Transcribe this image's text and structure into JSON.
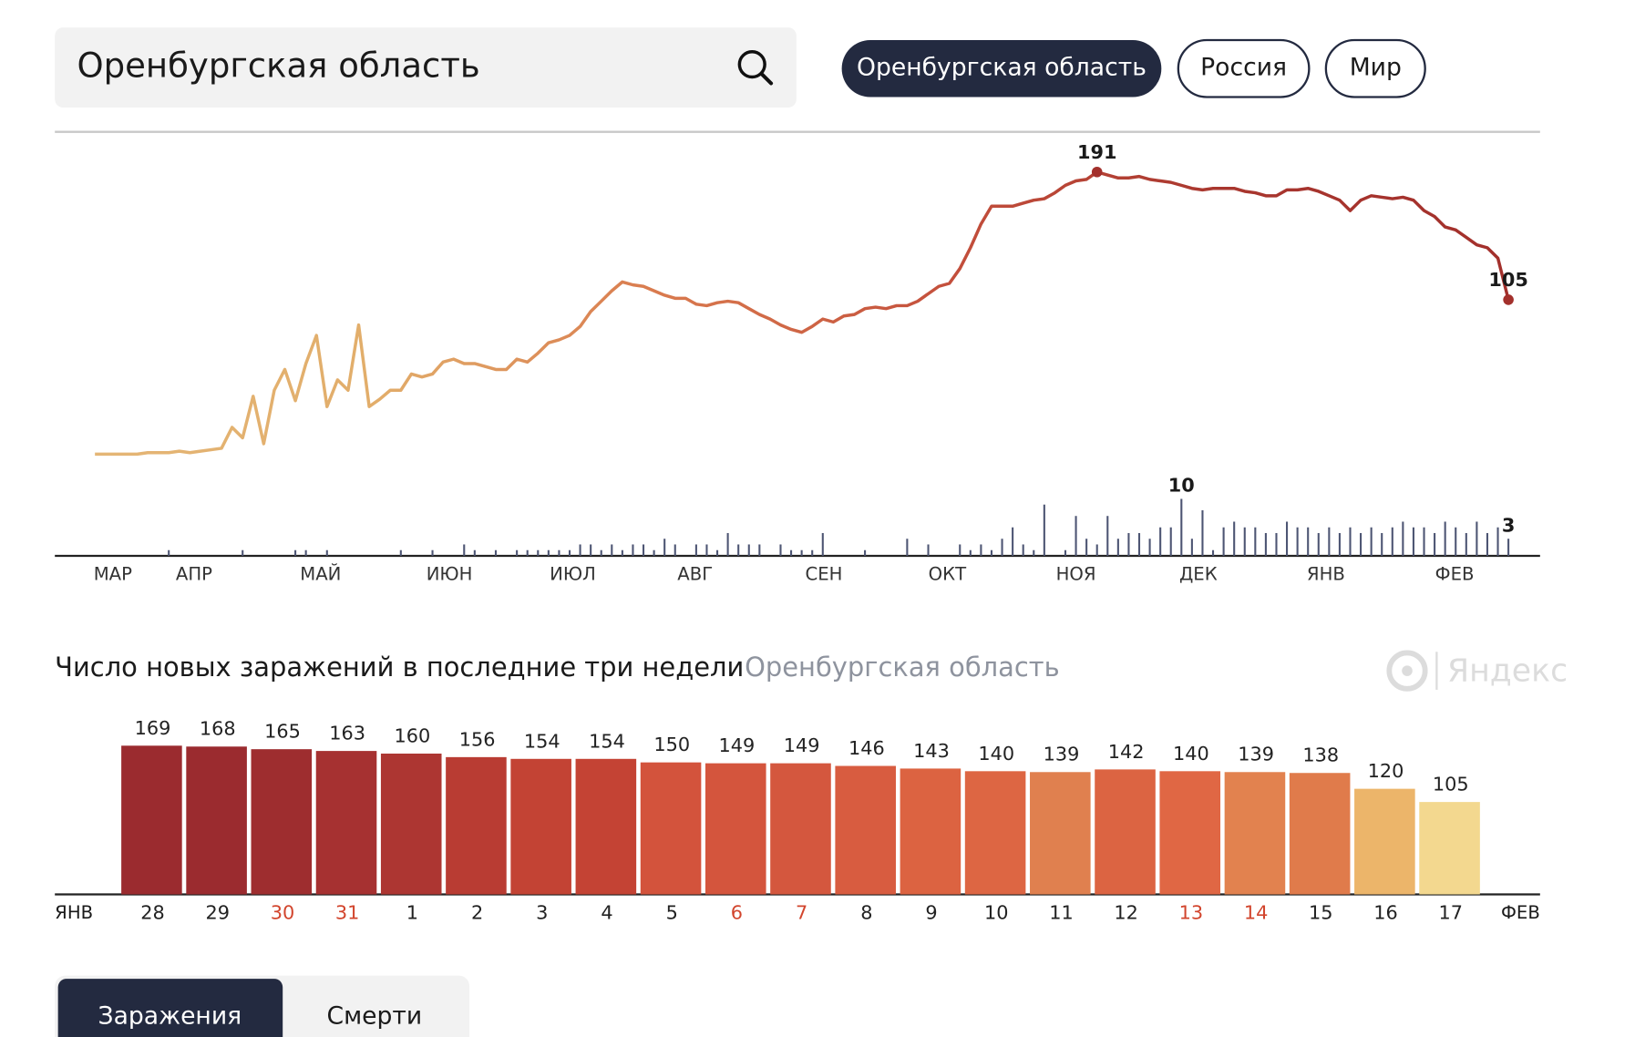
{
  "search": {
    "query": "Оренбургская область"
  },
  "region_buttons": [
    "Оренбургская область",
    "Россия",
    "Мир"
  ],
  "logo": "Яндекс",
  "mode_tabs": [
    "Заражения",
    "Смерти"
  ],
  "chart_data": [
    {
      "type": "line",
      "colors": [
        "#e4b676",
        "#e2ad6a",
        "#d97a4e",
        "#c4503c",
        "#a8362e",
        "#a3302c"
      ],
      "values": [
        1,
        1,
        1,
        1,
        1,
        2,
        2,
        2,
        3,
        2,
        3,
        4,
        5,
        19,
        12,
        40,
        8,
        44,
        58,
        37,
        62,
        81,
        33,
        51,
        44,
        88,
        33,
        38,
        44,
        44,
        55,
        53,
        55,
        63,
        65,
        62,
        62,
        60,
        58,
        58,
        65,
        63,
        69,
        76,
        78,
        81,
        87,
        97,
        104,
        111,
        117,
        115,
        114,
        111,
        108,
        106,
        106,
        102,
        101,
        103,
        104,
        103,
        99,
        95,
        92,
        88,
        85,
        83,
        87,
        92,
        90,
        94,
        95,
        99,
        100,
        99,
        101,
        101,
        104,
        109,
        114,
        116,
        126,
        140,
        156,
        168,
        168,
        168,
        170,
        172,
        173,
        177,
        182,
        185,
        186,
        191,
        189,
        187,
        187,
        188,
        186,
        185,
        184,
        182,
        180,
        179,
        180,
        180,
        180,
        178,
        177,
        175,
        175,
        179,
        179,
        180,
        178,
        175,
        172,
        165,
        172,
        175,
        174,
        173,
        174,
        172,
        165,
        161,
        154,
        152,
        147,
        142,
        140,
        133,
        105
      ],
      "month_labels": [
        "МАР",
        "АПР",
        "МАЙ",
        "ИЮН",
        "ИЮЛ",
        "АВГ",
        "СЕН",
        "ОКТ",
        "НОЯ",
        "ДЕК",
        "ЯНВ",
        "ФЕВ"
      ]
    },
    {
      "type": "bar",
      "color": "#4d5573",
      "values": [
        0,
        0,
        0,
        0,
        0,
        0,
        0,
        1,
        0,
        0,
        0,
        0,
        0,
        0,
        1,
        0,
        0,
        0,
        0,
        1,
        1,
        0,
        1,
        0,
        0,
        0,
        0,
        0,
        0,
        1,
        0,
        0,
        1,
        0,
        0,
        2,
        1,
        0,
        1,
        0,
        1,
        1,
        1,
        1,
        1,
        1,
        2,
        2,
        1,
        2,
        1,
        2,
        2,
        1,
        3,
        2,
        0,
        2,
        2,
        1,
        4,
        2,
        2,
        2,
        0,
        2,
        1,
        1,
        1,
        4,
        0,
        0,
        0,
        1,
        0,
        0,
        0,
        3,
        0,
        2,
        0,
        0,
        2,
        1,
        2,
        1,
        3,
        5,
        2,
        1,
        9,
        0,
        1,
        7,
        3,
        2,
        7,
        3,
        4,
        4,
        3,
        5,
        5,
        10,
        3,
        8,
        1,
        5,
        6,
        5,
        5,
        4,
        4,
        6,
        5,
        5,
        4,
        5,
        4,
        5,
        4,
        5,
        4,
        5,
        6,
        5,
        5,
        4,
        6,
        5,
        4,
        6,
        4,
        5,
        3
      ]
    },
    {
      "type": "bar",
      "title": "Число новых заражений в последние три недели",
      "subtitle": "Оренбургская область",
      "start_label": "ЯНВ",
      "end_label": "ФЕВ",
      "categories": [
        "28",
        "29",
        "30",
        "31",
        "1",
        "2",
        "3",
        "4",
        "5",
        "6",
        "7",
        "8",
        "9",
        "10",
        "11",
        "12",
        "13",
        "14",
        "15",
        "16",
        "17"
      ],
      "category_colors": [
        "#222",
        "#222",
        "#d2452d",
        "#d2452d",
        "#222",
        "#222",
        "#222",
        "#222",
        "#222",
        "#d2452d",
        "#d2452d",
        "#222",
        "#222",
        "#222",
        "#222",
        "#222",
        "#d2452d",
        "#d2452d",
        "#222",
        "#222",
        "#222"
      ],
      "values": [
        169,
        168,
        165,
        163,
        160,
        156,
        154,
        154,
        150,
        149,
        149,
        146,
        143,
        140,
        139,
        142,
        140,
        139,
        138,
        120,
        105
      ],
      "colors": [
        "#9b2b2f",
        "#9b2b2f",
        "#9e2d2f",
        "#a63131",
        "#ad3632",
        "#b93c33",
        "#c34334",
        "#c44334",
        "#d3533c",
        "#d4553d",
        "#d4573e",
        "#d85c40",
        "#dc6341",
        "#dd6643",
        "#e0804f",
        "#dc6442",
        "#e06744",
        "#e2824f",
        "#e07b4b",
        "#ecb56a",
        "#f3d88f"
      ]
    }
  ]
}
